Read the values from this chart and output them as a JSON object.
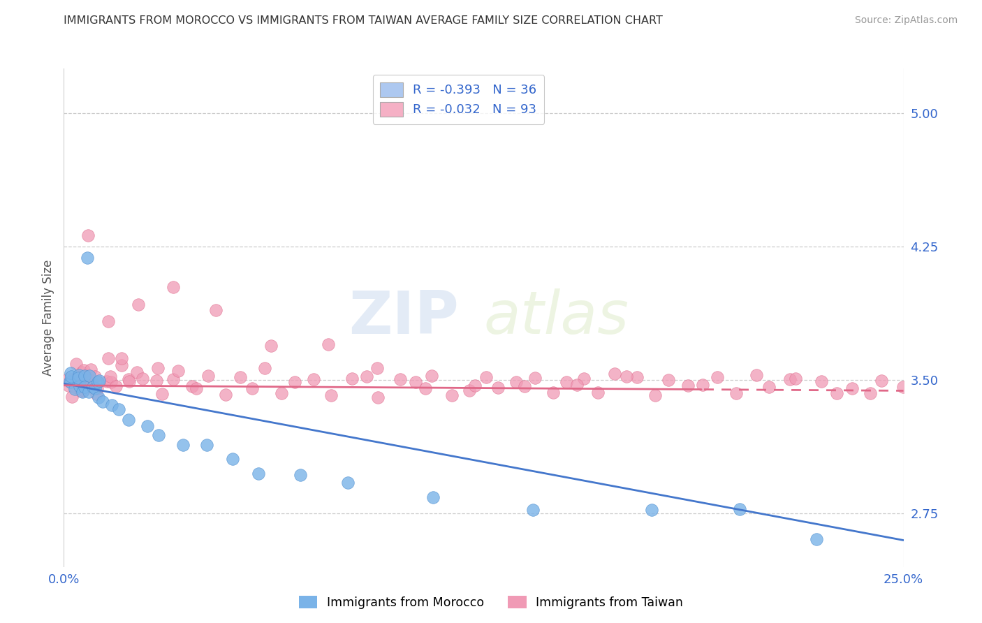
{
  "title": "IMMIGRANTS FROM MOROCCO VS IMMIGRANTS FROM TAIWAN AVERAGE FAMILY SIZE CORRELATION CHART",
  "source_text": "Source: ZipAtlas.com",
  "ylabel": "Average Family Size",
  "xmin": 0.0,
  "xmax": 25.0,
  "ymin": 2.45,
  "ymax": 5.25,
  "yticks": [
    2.75,
    3.5,
    4.25,
    5.0
  ],
  "watermark_zip": "ZIP",
  "watermark_atlas": "atlas",
  "legend_entries": [
    {
      "label": "R = -0.393   N = 36",
      "color": "#adc8f0"
    },
    {
      "label": "R = -0.032   N = 93",
      "color": "#f5b0c5"
    }
  ],
  "legend_bottom_labels": [
    "Immigrants from Morocco",
    "Immigrants from Taiwan"
  ],
  "morocco_color": "#7ab3e8",
  "morocco_edge": "#5090d0",
  "taiwan_color": "#f09ab5",
  "taiwan_edge": "#e07090",
  "morocco_line_color": "#4477cc",
  "taiwan_line_color": "#e06888",
  "background_color": "#ffffff",
  "grid_color": "#cccccc",
  "title_fontsize": 11.5,
  "axis_label_color": "#3366cc",
  "ylabel_color": "#555555",
  "morocco_x": [
    0.15,
    0.2,
    0.25,
    0.3,
    0.35,
    0.4,
    0.45,
    0.5,
    0.55,
    0.6,
    0.65,
    0.7,
    0.75,
    0.8,
    0.85,
    0.9,
    0.95,
    1.0,
    1.1,
    1.2,
    1.4,
    1.6,
    1.9,
    2.3,
    2.8,
    3.5,
    4.2,
    5.0,
    5.8,
    7.0,
    8.5,
    11.0,
    14.0,
    17.5,
    20.0,
    22.5
  ],
  "morocco_y": [
    3.48,
    3.52,
    3.55,
    3.5,
    3.45,
    3.55,
    3.48,
    3.5,
    3.45,
    3.52,
    3.46,
    4.2,
    3.48,
    3.42,
    3.5,
    3.45,
    3.5,
    3.48,
    3.42,
    3.38,
    3.35,
    3.32,
    3.3,
    3.25,
    3.2,
    3.15,
    3.1,
    3.05,
    3.0,
    2.95,
    2.88,
    2.82,
    2.8,
    2.78,
    2.75,
    2.62
  ],
  "taiwan_x": [
    0.1,
    0.15,
    0.2,
    0.25,
    0.3,
    0.35,
    0.4,
    0.45,
    0.5,
    0.55,
    0.6,
    0.65,
    0.7,
    0.75,
    0.8,
    0.85,
    0.9,
    0.95,
    1.0,
    1.1,
    1.2,
    1.3,
    1.4,
    1.5,
    1.6,
    1.7,
    1.8,
    1.9,
    2.0,
    2.2,
    2.4,
    2.6,
    2.8,
    3.0,
    3.2,
    3.5,
    3.8,
    4.1,
    4.4,
    4.8,
    5.2,
    5.6,
    6.0,
    6.5,
    7.0,
    7.5,
    8.0,
    8.5,
    9.0,
    9.5,
    10.0,
    10.5,
    11.0,
    11.5,
    12.0,
    12.5,
    13.0,
    13.5,
    14.0,
    14.5,
    15.0,
    15.5,
    16.0,
    16.5,
    17.0,
    17.5,
    18.0,
    18.5,
    19.0,
    19.5,
    20.0,
    20.5,
    21.0,
    21.5,
    22.0,
    22.5,
    23.0,
    23.5,
    24.0,
    24.5,
    25.0,
    1.3,
    2.1,
    3.3,
    4.6,
    6.2,
    7.8,
    9.3,
    10.8,
    12.2,
    13.7,
    15.2,
    16.8
  ],
  "taiwan_y": [
    3.48,
    3.52,
    3.45,
    3.58,
    3.5,
    3.46,
    3.55,
    3.48,
    3.52,
    3.45,
    3.5,
    3.48,
    4.3,
    3.5,
    3.52,
    3.55,
    3.5,
    3.48,
    3.52,
    3.45,
    3.55,
    3.5,
    3.48,
    3.52,
    3.5,
    3.55,
    3.6,
    3.48,
    3.52,
    3.5,
    3.55,
    3.48,
    3.5,
    3.45,
    3.52,
    3.55,
    3.48,
    3.5,
    3.52,
    3.45,
    3.5,
    3.48,
    3.52,
    3.45,
    3.5,
    3.48,
    3.45,
    3.5,
    3.48,
    3.45,
    3.5,
    3.48,
    3.5,
    3.45,
    3.48,
    3.5,
    3.45,
    3.48,
    3.5,
    3.45,
    3.48,
    3.5,
    3.45,
    3.48,
    3.5,
    3.45,
    3.48,
    3.5,
    3.45,
    3.48,
    3.45,
    3.5,
    3.45,
    3.48,
    3.45,
    3.5,
    3.45,
    3.48,
    3.45,
    3.5,
    3.45,
    3.82,
    3.9,
    4.02,
    3.85,
    3.7,
    3.62,
    3.55,
    3.48,
    3.5,
    3.45,
    3.48,
    3.5
  ]
}
